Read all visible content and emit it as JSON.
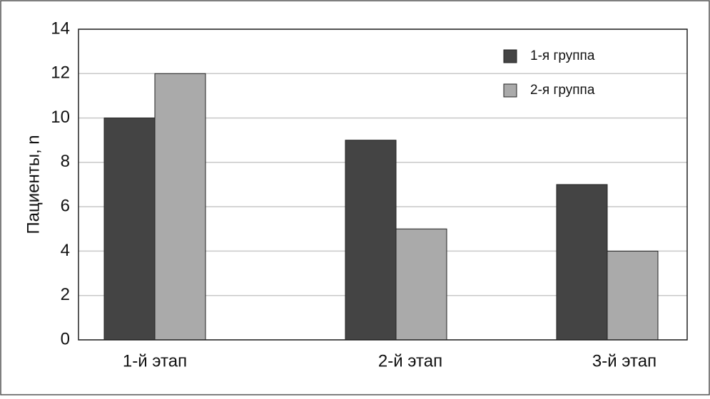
{
  "chart_data": {
    "type": "bar",
    "categories": [
      "1-й этап",
      "2-й этап",
      "3-й этап"
    ],
    "series": [
      {
        "name": "1-я группа",
        "color": "#444444",
        "values": [
          10,
          9,
          7
        ]
      },
      {
        "name": "2-я группа",
        "color": "#aaaaaa",
        "values": [
          12,
          5,
          4
        ]
      }
    ],
    "y_label": "Пациенты, n",
    "ylim": [
      0,
      14
    ],
    "yticks": [
      0,
      2,
      4,
      6,
      8,
      10,
      12,
      14
    ],
    "grid": true,
    "legend": "top-right"
  }
}
